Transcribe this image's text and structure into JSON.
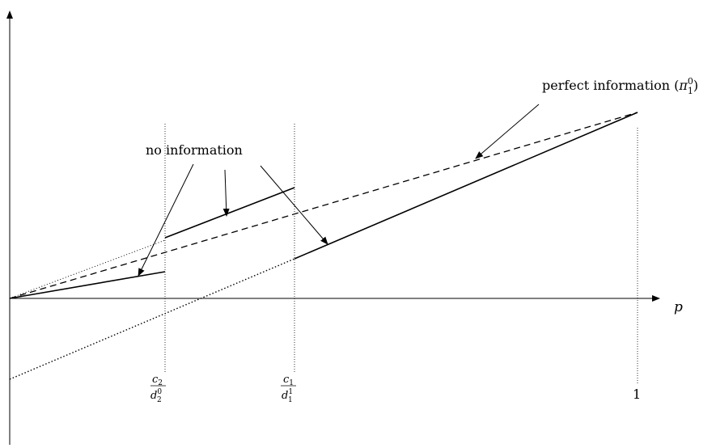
{
  "axis": {
    "x_label": "p"
  },
  "ticks": {
    "c2_num": "c",
    "c2_num_sub": "2",
    "c2_den": "d",
    "c2_den_sub": "2",
    "c2_den_sup": "0",
    "c1_num": "c",
    "c1_num_sub": "1",
    "c1_den": "d",
    "c1_den_sub": "1",
    "c1_den_sup": "1",
    "one": "1"
  },
  "labels": {
    "no_information": "no information",
    "perfect_prefix": "perfect information (",
    "perfect_symbol": "π",
    "perfect_sub": "1",
    "perfect_sup": "0",
    "perfect_suffix": ")"
  },
  "colors": {
    "line": "#000000",
    "background": "#ffffff"
  }
}
